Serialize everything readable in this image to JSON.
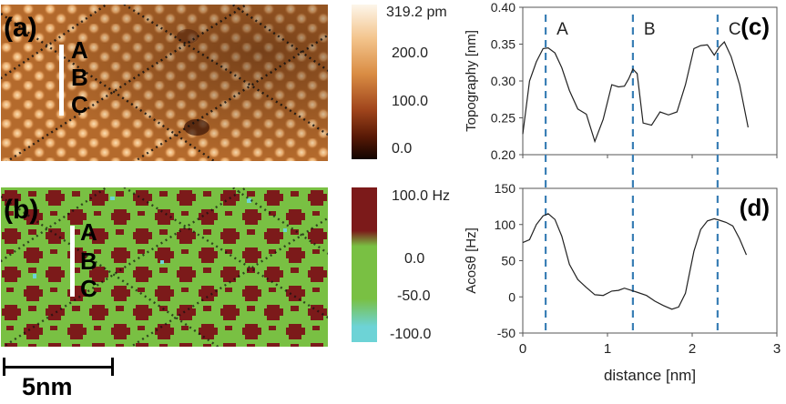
{
  "figure": {
    "panel_a": {
      "tag": "(a)",
      "marks": [
        "A",
        "B",
        "C"
      ]
    },
    "panel_b": {
      "tag": "(b)",
      "marks": [
        "A",
        "B",
        "C"
      ]
    },
    "colorbar_a": {
      "labels": [
        "319.2 pm",
        "200.0",
        "100.0",
        "0.0"
      ]
    },
    "colorbar_b": {
      "labels": [
        "100.0 Hz",
        "0.0",
        "-50.0",
        "-100.0"
      ]
    },
    "scalebar": {
      "label": "5nm"
    }
  },
  "colors": {
    "topo_dark": "#2a0d02",
    "topo_mid": "#a95a1e",
    "topo_light": "#f4c58d",
    "freq_green": "#79c043",
    "freq_maroon": "#7c1a1a",
    "freq_cyan": "#6dd3d6",
    "guide_blue": "#3a7fb5"
  },
  "chart_data": [
    {
      "type": "line",
      "panel": "(c)",
      "ylabel": "Topography [nm]",
      "xlabel": "",
      "ylim": [
        0.2,
        0.4
      ],
      "yticks": [
        "0.20",
        "0.25",
        "0.30",
        "0.35",
        "0.40"
      ],
      "xlim": [
        0,
        3
      ],
      "x": [
        0.0,
        0.08,
        0.16,
        0.24,
        0.3,
        0.38,
        0.46,
        0.55,
        0.65,
        0.75,
        0.85,
        0.95,
        1.05,
        1.13,
        1.2,
        1.25,
        1.3,
        1.35,
        1.42,
        1.52,
        1.62,
        1.72,
        1.82,
        1.92,
        2.02,
        2.1,
        2.18,
        2.26,
        2.32,
        2.38,
        2.46,
        2.56,
        2.66
      ],
      "series": [
        {
          "values": [
            0.228,
            0.3,
            0.326,
            0.344,
            0.345,
            0.338,
            0.318,
            0.287,
            0.262,
            0.255,
            0.218,
            0.248,
            0.295,
            0.292,
            0.293,
            0.303,
            0.316,
            0.31,
            0.243,
            0.24,
            0.258,
            0.254,
            0.258,
            0.295,
            0.344,
            0.348,
            0.349,
            0.335,
            0.346,
            0.353,
            0.333,
            0.295,
            0.237
          ]
        }
      ],
      "guides": [
        {
          "x": 0.27,
          "label": "A"
        },
        {
          "x": 1.3,
          "label": "B"
        },
        {
          "x": 2.3,
          "label": "C"
        }
      ]
    },
    {
      "type": "line",
      "panel": "(d)",
      "ylabel": "Acosθ [Hz]",
      "xlabel": "distance [nm]",
      "ylim": [
        -50,
        150
      ],
      "yticks": [
        "-50",
        "0",
        "50",
        "100",
        "150"
      ],
      "xlim": [
        0,
        3
      ],
      "xticks": [
        "0",
        "1",
        "2",
        "3"
      ],
      "x": [
        0.0,
        0.08,
        0.16,
        0.24,
        0.3,
        0.38,
        0.46,
        0.55,
        0.65,
        0.75,
        0.85,
        0.95,
        1.05,
        1.13,
        1.2,
        1.28,
        1.36,
        1.46,
        1.56,
        1.66,
        1.76,
        1.84,
        1.92,
        2.02,
        2.1,
        2.18,
        2.26,
        2.32,
        2.4,
        2.48,
        2.56,
        2.64
      ],
      "series": [
        {
          "values": [
            75,
            79,
            100,
            112,
            115,
            107,
            84,
            45,
            24,
            13,
            3,
            2,
            8,
            9,
            12,
            9,
            6,
            2,
            -6,
            -12,
            -17,
            -14,
            5,
            63,
            93,
            105,
            108,
            106,
            103,
            98,
            80,
            58
          ]
        }
      ],
      "guides": [
        {
          "x": 0.27
        },
        {
          "x": 1.3
        },
        {
          "x": 2.3
        }
      ]
    }
  ]
}
